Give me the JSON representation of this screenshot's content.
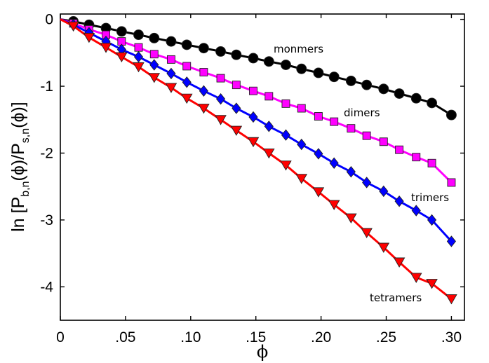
{
  "chart_data": {
    "type": "line",
    "xlabel": "ϕ",
    "ylabel": {
      "prefix": "ln [P",
      "sub1": "b,n",
      "mid": "(ϕ)/P",
      "sub2": "s,n",
      "suffix": "(ϕ)]"
    },
    "xlim": [
      0,
      0.31
    ],
    "ylim": [
      -4.5,
      0.08
    ],
    "xticks": [
      {
        "value": 0,
        "label": "0"
      },
      {
        "value": 0.05,
        "label": ".05"
      },
      {
        "value": 0.1,
        "label": ".10"
      },
      {
        "value": 0.15,
        "label": ".15"
      },
      {
        "value": 0.2,
        "label": ".20"
      },
      {
        "value": 0.25,
        "label": ".25"
      },
      {
        "value": 0.3,
        "label": ".30"
      }
    ],
    "yticks": [
      {
        "value": 0,
        "label": "0"
      },
      {
        "value": -1,
        "label": "-1"
      },
      {
        "value": -2,
        "label": "-2"
      },
      {
        "value": -3,
        "label": "-3"
      },
      {
        "value": -4,
        "label": "-4"
      }
    ],
    "x": [
      0.01,
      0.022,
      0.035,
      0.047,
      0.06,
      0.072,
      0.085,
      0.097,
      0.11,
      0.123,
      0.135,
      0.148,
      0.16,
      0.173,
      0.185,
      0.198,
      0.21,
      0.223,
      0.235,
      0.248,
      0.26,
      0.273,
      0.285,
      0.3
    ],
    "series": [
      {
        "name": "monmers",
        "color": "#000000",
        "marker": "circle",
        "values": [
          -0.03,
          -0.08,
          -0.13,
          -0.18,
          -0.23,
          -0.28,
          -0.33,
          -0.38,
          -0.43,
          -0.48,
          -0.53,
          -0.58,
          -0.63,
          -0.68,
          -0.74,
          -0.8,
          -0.86,
          -0.92,
          -0.98,
          -1.04,
          -1.11,
          -1.18,
          -1.25,
          -1.43
        ]
      },
      {
        "name": "dimers",
        "color": "#ff00ff",
        "marker": "square",
        "values": [
          -0.06,
          -0.15,
          -0.23,
          -0.33,
          -0.42,
          -0.52,
          -0.6,
          -0.7,
          -0.79,
          -0.88,
          -0.98,
          -1.07,
          -1.15,
          -1.26,
          -1.33,
          -1.45,
          -1.53,
          -1.63,
          -1.74,
          -1.83,
          -1.95,
          -2.06,
          -2.15,
          -2.44
        ]
      },
      {
        "name": "trimers",
        "color": "#0000ff",
        "marker": "diamond",
        "values": [
          -0.08,
          -0.2,
          -0.33,
          -0.45,
          -0.56,
          -0.68,
          -0.81,
          -0.94,
          -1.07,
          -1.19,
          -1.33,
          -1.46,
          -1.6,
          -1.73,
          -1.87,
          -2.01,
          -2.15,
          -2.28,
          -2.44,
          -2.57,
          -2.72,
          -2.86,
          -3.0,
          -3.32
        ]
      },
      {
        "name": "tetramers",
        "color": "#ff0000",
        "marker": "triangle-down",
        "values": [
          -0.1,
          -0.27,
          -0.42,
          -0.56,
          -0.71,
          -0.87,
          -1.02,
          -1.18,
          -1.33,
          -1.5,
          -1.66,
          -1.83,
          -2.0,
          -2.18,
          -2.38,
          -2.58,
          -2.77,
          -2.97,
          -3.19,
          -3.41,
          -3.63,
          -3.86,
          -3.95,
          -4.18
        ]
      }
    ],
    "grid": false,
    "legend": "none"
  }
}
